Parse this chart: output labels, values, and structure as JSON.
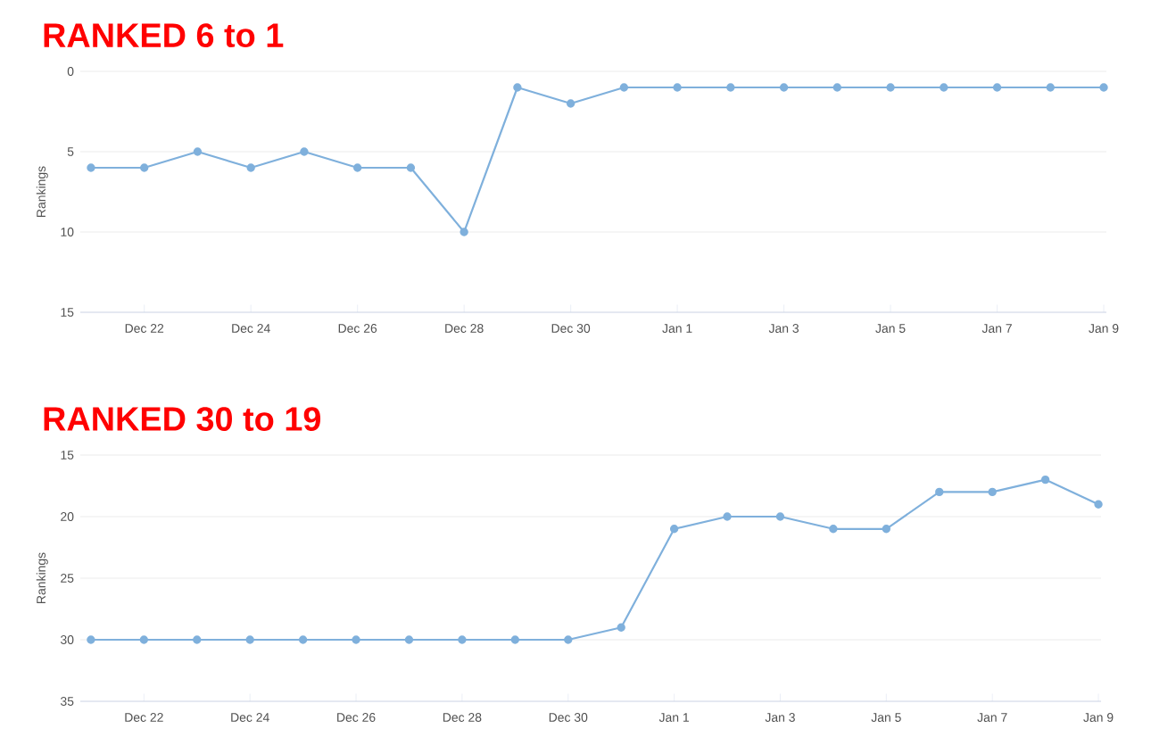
{
  "chart_data": [
    {
      "type": "line",
      "title": "RANKED 6 to 1",
      "ylabel": "Rankings",
      "categories": [
        null,
        "Dec 22",
        null,
        "Dec 24",
        null,
        "Dec 26",
        null,
        "Dec 28",
        null,
        "Dec 30",
        null,
        "Jan 1",
        null,
        "Jan 3",
        null,
        "Jan 5",
        null,
        "Jan 7",
        null,
        "Jan 9"
      ],
      "series": [
        {
          "color": "#7fb0dc",
          "values": [
            6,
            6,
            5,
            6,
            5,
            6,
            6,
            10,
            1,
            2,
            1,
            1,
            1,
            1,
            1,
            1,
            1,
            1,
            1,
            1
          ]
        }
      ],
      "ylim": [
        15,
        0
      ],
      "yticks": [
        0,
        5,
        10,
        15
      ],
      "grid": "y",
      "marker": "circle",
      "line_style": "solid"
    },
    {
      "type": "line",
      "title": "RANKED 30 to 19",
      "ylabel": "Rankings",
      "categories": [
        null,
        "Dec 22",
        null,
        "Dec 24",
        null,
        "Dec 26",
        null,
        "Dec 28",
        null,
        "Dec 30",
        null,
        "Jan 1",
        null,
        "Jan 3",
        null,
        "Jan 5",
        null,
        "Jan 7",
        null,
        "Jan 9"
      ],
      "series": [
        {
          "color": "#7fb0dc",
          "values": [
            30,
            30,
            30,
            30,
            30,
            30,
            30,
            30,
            30,
            30,
            29,
            21,
            20,
            20,
            21,
            21,
            18,
            18,
            17,
            19
          ]
        }
      ],
      "ylim": [
        35,
        15
      ],
      "yticks": [
        15,
        20,
        25,
        30,
        35
      ],
      "grid": "y",
      "marker": "circle",
      "line_style": "solid"
    }
  ]
}
